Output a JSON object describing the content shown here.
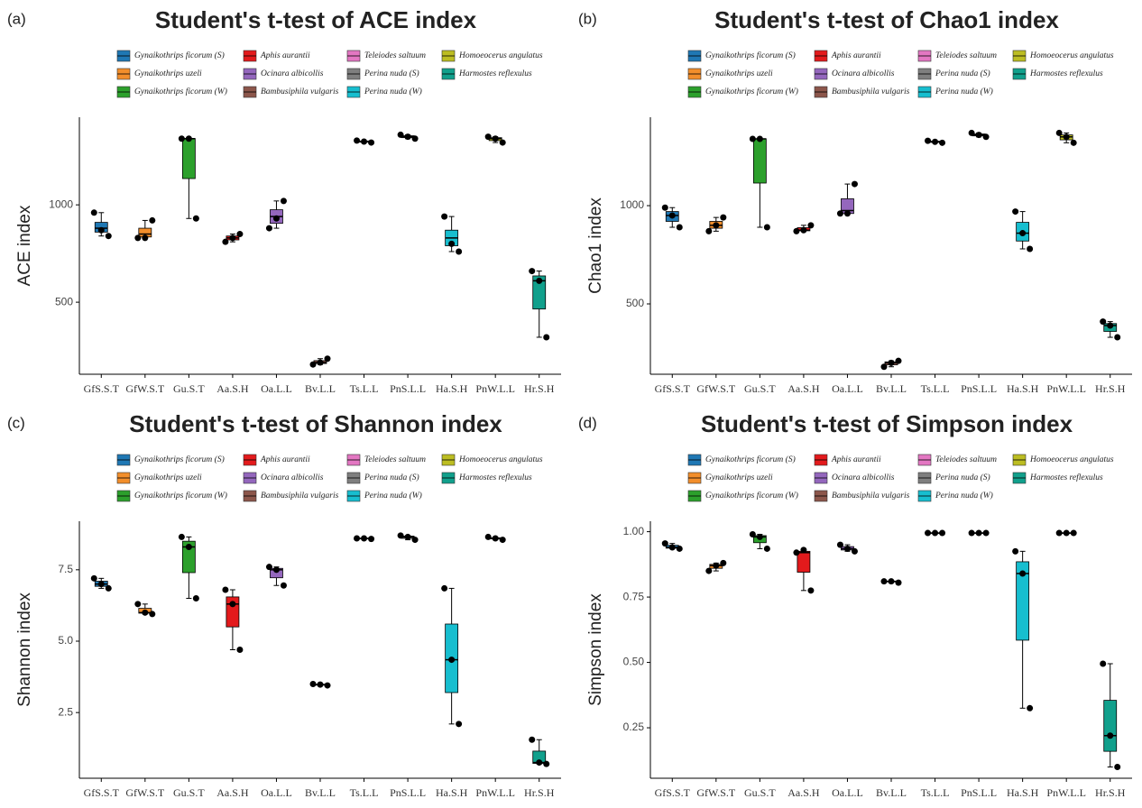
{
  "legend": {
    "series": [
      {
        "name": "Gynaikothrips ficorum (S)",
        "color": "#1f78b4"
      },
      {
        "name": "Gynaikothrips uzeli",
        "color": "#f28e2b"
      },
      {
        "name": "Gynaikothrips ficorum (W)",
        "color": "#2ca02c"
      },
      {
        "name": "Aphis aurantii",
        "color": "#e31a1c"
      },
      {
        "name": "Ocinara albicollis",
        "color": "#9467bd"
      },
      {
        "name": "Bambusiphila vulgaris",
        "color": "#8c564b"
      },
      {
        "name": "Teleiodes saltuum",
        "color": "#e377c2"
      },
      {
        "name": "Perina nuda (S)",
        "color": "#7f7f7f"
      },
      {
        "name": "Perina nuda (W)",
        "color": "#17becf"
      },
      {
        "name": "Homoeocerus angulatus",
        "color": "#bcbd22"
      },
      {
        "name": "Harmostes reflexulus",
        "color": "#11a08c"
      }
    ]
  },
  "chart_data": [
    {
      "type": "box",
      "panel_label": "(a)",
      "title": "Student's t-test of ACE index",
      "y_label": "ACE index",
      "categories": [
        "GfS.S.T",
        "GfW.S.T",
        "Gu.S.T",
        "Aa.S.H",
        "Oa.L.L",
        "Bv.L.L",
        "Ts.L.L",
        "PnS.L.L",
        "Ha.S.H",
        "PnW.L.L",
        "Hr.S.H"
      ],
      "ylim": [
        130,
        1450
      ],
      "yticks": [
        500,
        1000
      ],
      "boxes": [
        [
          840,
          860,
          880,
          910,
          960
        ],
        [
          830,
          835,
          850,
          880,
          920
        ],
        [
          930,
          1135,
          1340,
          1340,
          1340
        ],
        [
          810,
          820,
          830,
          840,
          850
        ],
        [
          880,
          905,
          940,
          975,
          1020
        ],
        [
          180,
          185,
          190,
          200,
          210
        ],
        [
          1320,
          1322,
          1325,
          1328,
          1330
        ],
        [
          1340,
          1345,
          1350,
          1355,
          1360
        ],
        [
          760,
          790,
          830,
          870,
          940
        ],
        [
          1320,
          1330,
          1340,
          1345,
          1350
        ],
        [
          320,
          465,
          610,
          635,
          660
        ]
      ],
      "points": [
        [
          960,
          870,
          840
        ],
        [
          830,
          830,
          920
        ],
        [
          1340,
          1340,
          930
        ],
        [
          810,
          830,
          850
        ],
        [
          880,
          930,
          1020
        ],
        [
          180,
          190,
          210
        ],
        [
          1330,
          1325,
          1320
        ],
        [
          1360,
          1350,
          1340
        ],
        [
          940,
          800,
          760
        ],
        [
          1350,
          1340,
          1320
        ],
        [
          660,
          610,
          320
        ]
      ]
    },
    {
      "type": "box",
      "panel_label": "(b)",
      "title": "Student's t-test of Chao1 index",
      "y_label": "Chao1 index",
      "categories": [
        "GfS.S.T",
        "GfW.S.T",
        "Gu.S.T",
        "Aa.S.H",
        "Oa.L.L",
        "Bv.L.L",
        "Ts.L.L",
        "PnS.L.L",
        "Ha.S.H",
        "PnW.L.L",
        "Hr.S.H"
      ],
      "ylim": [
        142,
        1450
      ],
      "yticks": [
        500,
        1000
      ],
      "boxes": [
        [
          890,
          920,
          950,
          970,
          990
        ],
        [
          870,
          885,
          900,
          920,
          940
        ],
        [
          890,
          1115,
          1340,
          1340,
          1340
        ],
        [
          870,
          872,
          875,
          888,
          900
        ],
        [
          960,
          960,
          975,
          1035,
          1110
        ],
        [
          180,
          190,
          200,
          205,
          210
        ],
        [
          1320,
          1322,
          1325,
          1328,
          1330
        ],
        [
          1350,
          1355,
          1360,
          1365,
          1370
        ],
        [
          780,
          820,
          860,
          915,
          970
        ],
        [
          1320,
          1335,
          1350,
          1360,
          1370
        ],
        [
          330,
          360,
          390,
          400,
          410
        ]
      ],
      "points": [
        [
          990,
          950,
          890
        ],
        [
          870,
          900,
          940
        ],
        [
          1340,
          1340,
          890
        ],
        [
          870,
          875,
          900
        ],
        [
          960,
          960,
          1110
        ],
        [
          180,
          200,
          210
        ],
        [
          1330,
          1325,
          1320
        ],
        [
          1370,
          1360,
          1350
        ],
        [
          970,
          860,
          780
        ],
        [
          1370,
          1350,
          1320
        ],
        [
          410,
          390,
          330
        ]
      ]
    },
    {
      "type": "box",
      "panel_label": "(c)",
      "title": "Student's t-test of Shannon index",
      "y_label": "Shannon index",
      "categories": [
        "GfS.S.T",
        "GfW.S.T",
        "Gu.S.T",
        "Aa.S.H",
        "Oa.L.L",
        "Bv.L.L",
        "Ts.L.L",
        "PnS.L.L",
        "Ha.S.H",
        "PnW.L.L",
        "Hr.S.H"
      ],
      "ylim": [
        0.2,
        9.2
      ],
      "yticks": [
        2.5,
        {
          "value": 5,
          "label": "5.0"
        },
        7.5
      ],
      "boxes": [
        [
          6.85,
          6.92,
          7,
          7.1,
          7.2
        ],
        [
          5.95,
          5.98,
          6,
          6.15,
          6.3
        ],
        [
          6.5,
          7.4,
          8.3,
          8.5,
          8.65
        ],
        [
          4.7,
          5.5,
          6.3,
          6.55,
          6.8
        ],
        [
          6.95,
          7.22,
          7.5,
          7.55,
          7.6
        ],
        [
          3.45,
          3.46,
          3.48,
          3.49,
          3.5
        ],
        [
          8.58,
          8.59,
          8.6,
          8.6,
          8.6
        ],
        [
          8.55,
          8.6,
          8.65,
          8.68,
          8.7
        ],
        [
          2.1,
          3.2,
          4.35,
          5.6,
          6.85
        ],
        [
          8.55,
          8.58,
          8.6,
          8.62,
          8.65
        ],
        [
          0.7,
          0.72,
          0.75,
          1.15,
          1.55
        ]
      ],
      "points": [
        [
          7.2,
          7,
          6.85
        ],
        [
          6.3,
          6,
          5.95
        ],
        [
          8.65,
          8.3,
          6.5
        ],
        [
          6.8,
          6.3,
          4.7
        ],
        [
          7.6,
          7.5,
          6.95
        ],
        [
          3.5,
          3.48,
          3.45
        ],
        [
          8.6,
          8.6,
          8.58
        ],
        [
          8.7,
          8.65,
          8.55
        ],
        [
          6.85,
          4.35,
          2.1
        ],
        [
          8.65,
          8.6,
          8.55
        ],
        [
          1.55,
          0.75,
          0.7
        ]
      ]
    },
    {
      "type": "box",
      "panel_label": "(d)",
      "title": "Student's t-test of Simpson index",
      "y_label": "Simpson index",
      "categories": [
        "GfS.S.T",
        "GfW.S.T",
        "Gu.S.T",
        "Aa.S.H",
        "Oa.L.L",
        "Bv.L.L",
        "Ts.L.L",
        "PnS.L.L",
        "Ha.S.H",
        "PnW.L.L",
        "Hr.S.H"
      ],
      "ylim": [
        0.057,
        1.04
      ],
      "yticks": [
        0.25,
        {
          "value": 0.5,
          "label": "0.50"
        },
        0.75,
        {
          "value": 1,
          "label": "1.00"
        }
      ],
      "boxes": [
        [
          0.935,
          0.937,
          0.94,
          0.948,
          0.955
        ],
        [
          0.85,
          0.86,
          0.87,
          0.875,
          0.88
        ],
        [
          0.935,
          0.958,
          0.98,
          0.985,
          0.99
        ],
        [
          0.775,
          0.845,
          0.92,
          0.925,
          0.93
        ],
        [
          0.925,
          0.93,
          0.935,
          0.943,
          0.95
        ],
        [
          0.805,
          0.808,
          0.81,
          0.81,
          0.81
        ],
        [
          0.995,
          0.995,
          0.995,
          0.995,
          0.995
        ],
        [
          0.995,
          0.995,
          0.995,
          0.995,
          0.995
        ],
        [
          0.325,
          0.585,
          0.84,
          0.885,
          0.925
        ],
        [
          0.995,
          0.995,
          0.995,
          0.995,
          0.995
        ],
        [
          0.1,
          0.16,
          0.22,
          0.355,
          0.495
        ]
      ],
      "points": [
        [
          0.955,
          0.94,
          0.935
        ],
        [
          0.85,
          0.87,
          0.88
        ],
        [
          0.99,
          0.98,
          0.935
        ],
        [
          0.92,
          0.93,
          0.775
        ],
        [
          0.95,
          0.935,
          0.925
        ],
        [
          0.81,
          0.81,
          0.805
        ],
        [
          0.995,
          0.995,
          0.995
        ],
        [
          0.995,
          0.995,
          0.995
        ],
        [
          0.925,
          0.84,
          0.325
        ],
        [
          0.995,
          0.995,
          0.995
        ],
        [
          0.495,
          0.22,
          0.1
        ]
      ]
    }
  ]
}
